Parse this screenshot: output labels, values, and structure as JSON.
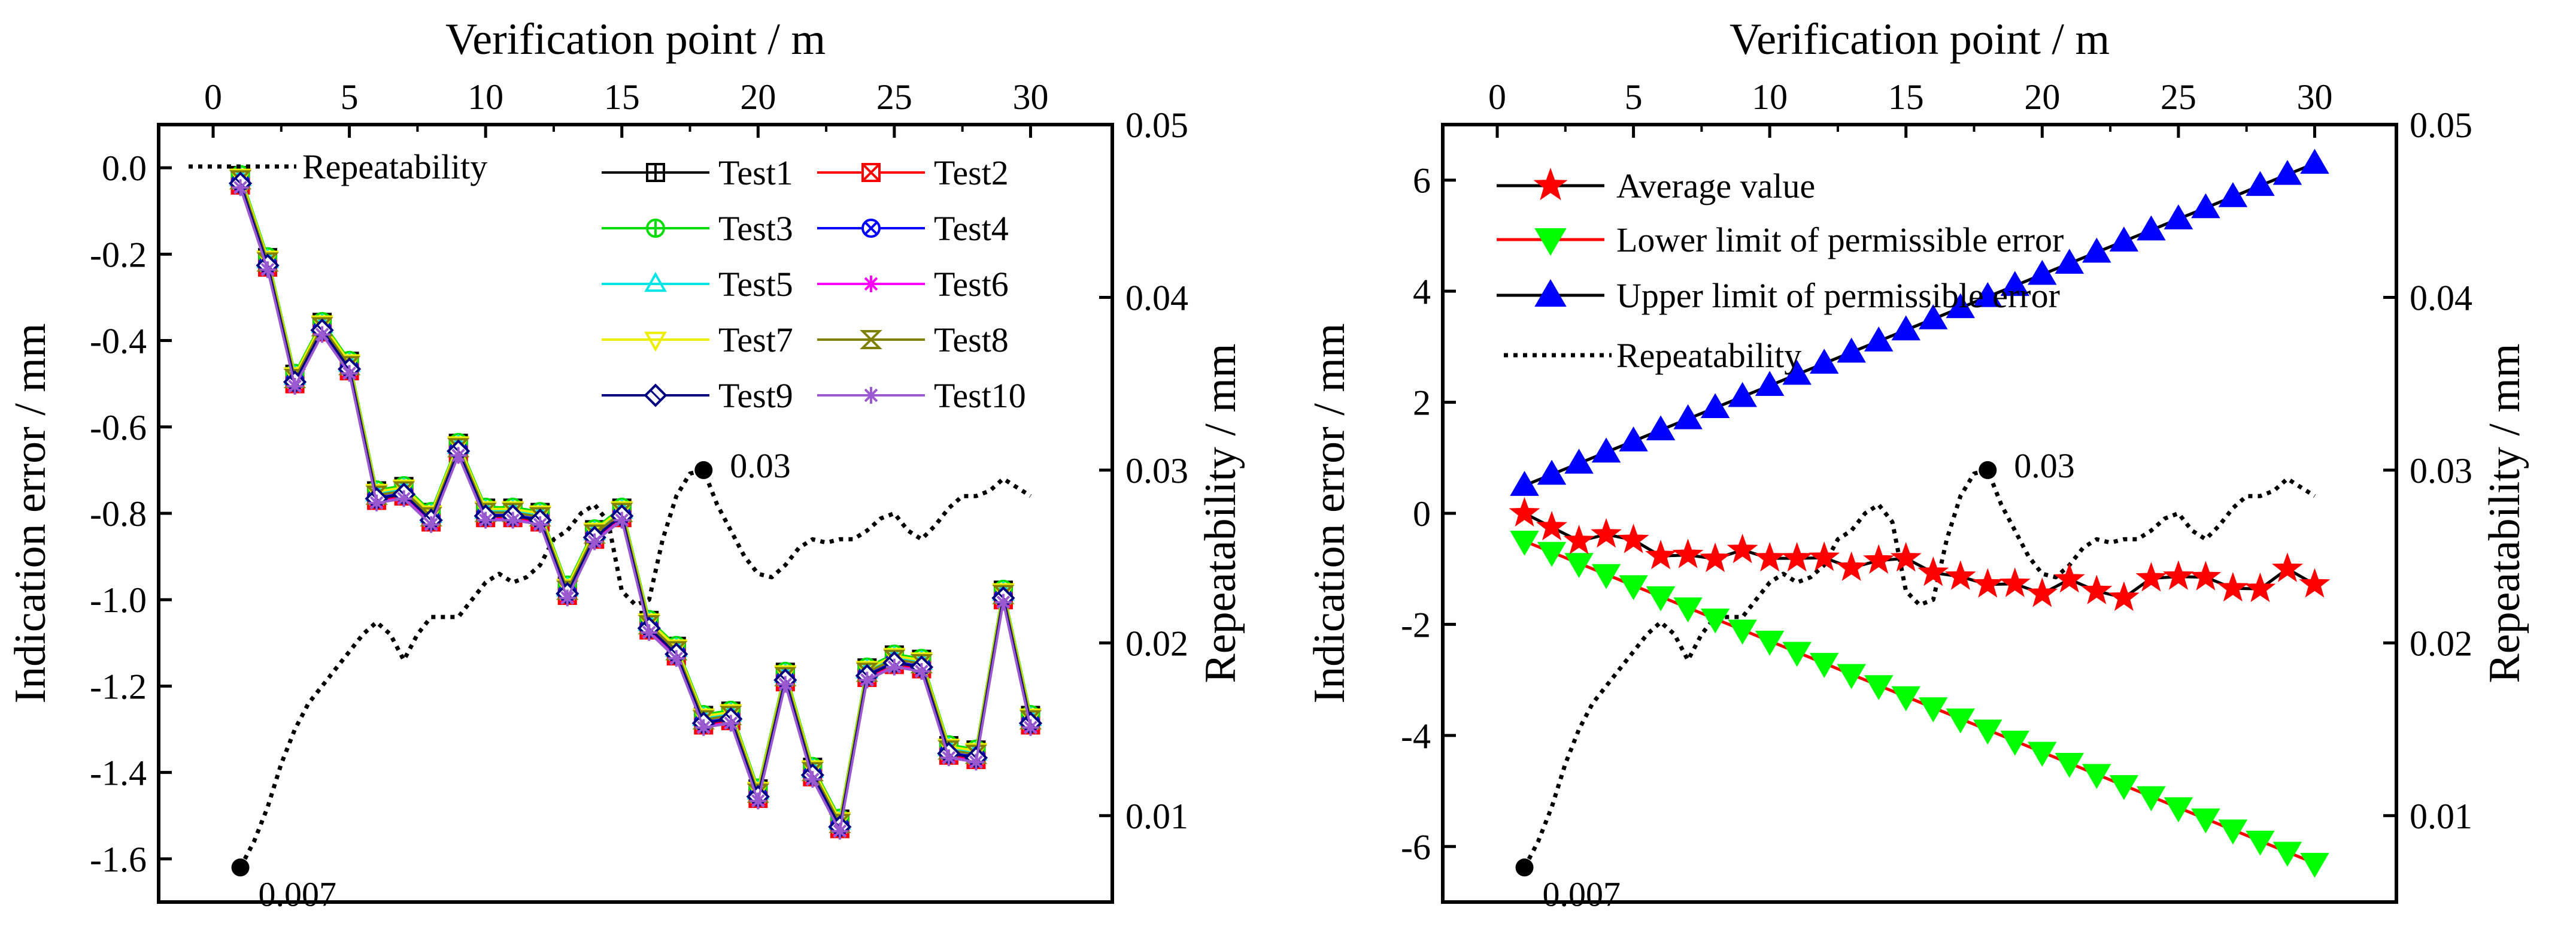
{
  "chart_data": [
    {
      "type": "line",
      "id": "left",
      "title": "",
      "xlabel_top": "Verification point / m",
      "ylabel_left": "Indication error / mm",
      "ylabel_right": "Repeatability / mm",
      "xlim": [
        -2,
        33
      ],
      "ylim_left": [
        -1.7,
        0.1
      ],
      "ylim_right": [
        0.005,
        0.05
      ],
      "xticks": [
        0,
        5,
        10,
        15,
        20,
        25,
        30
      ],
      "yticks_left": [
        0.0,
        -0.2,
        -0.4,
        -0.6,
        -0.8,
        -1.0,
        -1.2,
        -1.4,
        -1.6
      ],
      "yticks_left_labels": [
        "0.0",
        "-0.2",
        "-0.4",
        "-0.6",
        "-0.8",
        "-1.0",
        "-1.2",
        "-1.4",
        "-1.6"
      ],
      "yticks_right": [
        0.01,
        0.02,
        0.03,
        0.04,
        0.05
      ],
      "yticks_right_labels": [
        "0.01",
        "0.02",
        "0.03",
        "0.04",
        "0.05"
      ],
      "x": [
        1,
        2,
        3,
        4,
        5,
        6,
        7,
        8,
        9,
        10,
        11,
        12,
        13,
        14,
        15,
        16,
        17,
        18,
        19,
        20,
        21,
        22,
        23,
        24,
        25,
        26,
        27,
        28,
        29,
        30
      ],
      "base_error": [
        -0.03,
        -0.22,
        -0.49,
        -0.37,
        -0.46,
        -0.76,
        -0.75,
        -0.81,
        -0.65,
        -0.8,
        -0.8,
        -0.81,
        -0.98,
        -0.85,
        -0.8,
        -1.06,
        -1.12,
        -1.28,
        -1.27,
        -1.45,
        -1.18,
        -1.4,
        -1.52,
        -1.17,
        -1.14,
        -1.15,
        -1.35,
        -1.36,
        -0.99,
        -1.28
      ],
      "series": [
        {
          "name": "Test1",
          "color": "#000000",
          "marker": "square-plus",
          "offset": 0.012
        },
        {
          "name": "Test2",
          "color": "#ff0000",
          "marker": "square-x",
          "offset": -0.01
        },
        {
          "name": "Test3",
          "color": "#00dd00",
          "marker": "circle-plus",
          "offset": 0.014
        },
        {
          "name": "Test4",
          "color": "#0000ff",
          "marker": "circle-x",
          "offset": -0.004
        },
        {
          "name": "Test5",
          "color": "#00e5e5",
          "marker": "triangle-up",
          "offset": 0.006
        },
        {
          "name": "Test6",
          "color": "#ff00ff",
          "marker": "asterisk",
          "offset": -0.014
        },
        {
          "name": "Test7",
          "color": "#eeee00",
          "marker": "triangle-down",
          "offset": 0.01
        },
        {
          "name": "Test8",
          "color": "#808000",
          "marker": "hourglass",
          "offset": 0.002
        },
        {
          "name": "Test9",
          "color": "#000080",
          "marker": "diamond",
          "offset": -0.006
        },
        {
          "name": "Test10",
          "color": "#9b59d0",
          "marker": "asterisk",
          "offset": -0.016
        }
      ],
      "repeatability": {
        "name": "Repeatability",
        "x": [
          1,
          1.5,
          2,
          2.5,
          3,
          3.5,
          4,
          4.5,
          5,
          5.5,
          6,
          6.5,
          7,
          7.5,
          8,
          8.5,
          9,
          9.5,
          10,
          10.5,
          11,
          11.5,
          12,
          12.5,
          13,
          13.5,
          14,
          14.5,
          15,
          15.5,
          16,
          16.5,
          17,
          17.5,
          18,
          18.5,
          19,
          19.5,
          20,
          20.5,
          21,
          21.5,
          22,
          22.5,
          23,
          23.5,
          24,
          24.5,
          25,
          25.5,
          26,
          26.5,
          27,
          27.5,
          28,
          28.5,
          29,
          29.5,
          30
        ],
        "values": [
          0.007,
          0.0085,
          0.0105,
          0.013,
          0.015,
          0.0165,
          0.0175,
          0.0185,
          0.0195,
          0.0205,
          0.0212,
          0.0205,
          0.019,
          0.0205,
          0.0215,
          0.0215,
          0.0215,
          0.0225,
          0.0235,
          0.024,
          0.0235,
          0.0238,
          0.0245,
          0.026,
          0.0265,
          0.0275,
          0.028,
          0.027,
          0.023,
          0.0222,
          0.0225,
          0.026,
          0.0285,
          0.0298,
          0.03,
          0.028,
          0.0265,
          0.025,
          0.024,
          0.0238,
          0.0245,
          0.0255,
          0.026,
          0.0258,
          0.026,
          0.026,
          0.0265,
          0.0272,
          0.0275,
          0.0265,
          0.026,
          0.0268,
          0.0278,
          0.0285,
          0.0285,
          0.0288,
          0.0295,
          0.029,
          0.0285
        ]
      },
      "annotations": [
        {
          "label": "0.007",
          "x": 1,
          "y": 0.007
        },
        {
          "label": "0.03",
          "x": 18,
          "y": 0.03
        }
      ]
    },
    {
      "type": "line",
      "id": "right",
      "title": "",
      "xlabel_top": "Verification point / m",
      "ylabel_left": "Indication error / mm",
      "ylabel_right": "Repeatability / mm",
      "xlim": [
        -2,
        33
      ],
      "ylim_left": [
        -7,
        7
      ],
      "ylim_right": [
        0.005,
        0.05
      ],
      "xticks": [
        0,
        5,
        10,
        15,
        20,
        25,
        30
      ],
      "yticks_left": [
        6,
        4,
        2,
        0,
        -2,
        -4,
        -6
      ],
      "yticks_left_labels": [
        "6",
        "4",
        "2",
        "0",
        "-2",
        "-4",
        "-6"
      ],
      "yticks_right": [
        0.01,
        0.02,
        0.03,
        0.04,
        0.05
      ],
      "yticks_right_labels": [
        "0.01",
        "0.02",
        "0.03",
        "0.04",
        "0.05"
      ],
      "x": [
        1,
        2,
        3,
        4,
        5,
        6,
        7,
        8,
        9,
        10,
        11,
        12,
        13,
        14,
        15,
        16,
        17,
        18,
        19,
        20,
        21,
        22,
        23,
        24,
        25,
        26,
        27,
        28,
        29,
        30
      ],
      "series": [
        {
          "name": "Average value",
          "color": "#ff0000",
          "line_color": "#000000",
          "marker": "star",
          "values": [
            0.0,
            -0.25,
            -0.5,
            -0.38,
            -0.48,
            -0.77,
            -0.75,
            -0.82,
            -0.66,
            -0.81,
            -0.81,
            -0.8,
            -0.98,
            -0.85,
            -0.81,
            -1.07,
            -1.14,
            -1.28,
            -1.27,
            -1.45,
            -1.19,
            -1.4,
            -1.52,
            -1.17,
            -1.14,
            -1.15,
            -1.35,
            -1.36,
            -1.0,
            -1.28
          ]
        },
        {
          "name": "Lower limit of permissible error",
          "color": "#00ff00",
          "line_color": "#ff0000",
          "marker": "triangle-down",
          "values": [
            -0.5,
            -0.7,
            -0.9,
            -1.1,
            -1.3,
            -1.5,
            -1.7,
            -1.9,
            -2.1,
            -2.3,
            -2.5,
            -2.7,
            -2.9,
            -3.1,
            -3.3,
            -3.5,
            -3.7,
            -3.9,
            -4.1,
            -4.3,
            -4.5,
            -4.7,
            -4.9,
            -5.1,
            -5.3,
            -5.5,
            -5.7,
            -5.9,
            -6.1,
            -6.3
          ]
        },
        {
          "name": "Upper limit of permissible error",
          "color": "#0000ff",
          "line_color": "#000000",
          "marker": "triangle-up",
          "values": [
            0.5,
            0.7,
            0.9,
            1.1,
            1.3,
            1.5,
            1.7,
            1.9,
            2.1,
            2.3,
            2.5,
            2.7,
            2.9,
            3.1,
            3.3,
            3.5,
            3.7,
            3.9,
            4.1,
            4.3,
            4.5,
            4.7,
            4.9,
            5.1,
            5.3,
            5.5,
            5.7,
            5.9,
            6.1,
            6.3
          ]
        }
      ],
      "repeatability": {
        "name": "Repeatability",
        "x": [
          1,
          1.5,
          2,
          2.5,
          3,
          3.5,
          4,
          4.5,
          5,
          5.5,
          6,
          6.5,
          7,
          7.5,
          8,
          8.5,
          9,
          9.5,
          10,
          10.5,
          11,
          11.5,
          12,
          12.5,
          13,
          13.5,
          14,
          14.5,
          15,
          15.5,
          16,
          16.5,
          17,
          17.5,
          18,
          18.5,
          19,
          19.5,
          20,
          20.5,
          21,
          21.5,
          22,
          22.5,
          23,
          23.5,
          24,
          24.5,
          25,
          25.5,
          26,
          26.5,
          27,
          27.5,
          28,
          28.5,
          29,
          29.5,
          30
        ],
        "values": [
          0.007,
          0.0085,
          0.0105,
          0.013,
          0.015,
          0.0165,
          0.0175,
          0.0185,
          0.0195,
          0.0205,
          0.0212,
          0.0205,
          0.019,
          0.0205,
          0.0215,
          0.0215,
          0.0215,
          0.0225,
          0.0235,
          0.024,
          0.0235,
          0.0238,
          0.0245,
          0.026,
          0.0265,
          0.0275,
          0.028,
          0.027,
          0.023,
          0.0222,
          0.0225,
          0.026,
          0.0285,
          0.0298,
          0.03,
          0.028,
          0.0265,
          0.025,
          0.024,
          0.0238,
          0.0245,
          0.0255,
          0.026,
          0.0258,
          0.026,
          0.026,
          0.0265,
          0.0272,
          0.0275,
          0.0265,
          0.026,
          0.0268,
          0.0278,
          0.0285,
          0.0285,
          0.0288,
          0.0295,
          0.029,
          0.0285
        ]
      },
      "annotations": [
        {
          "label": "0.007",
          "x": 1,
          "y": 0.007
        },
        {
          "label": "0.03",
          "x": 18,
          "y": 0.03
        }
      ]
    }
  ]
}
